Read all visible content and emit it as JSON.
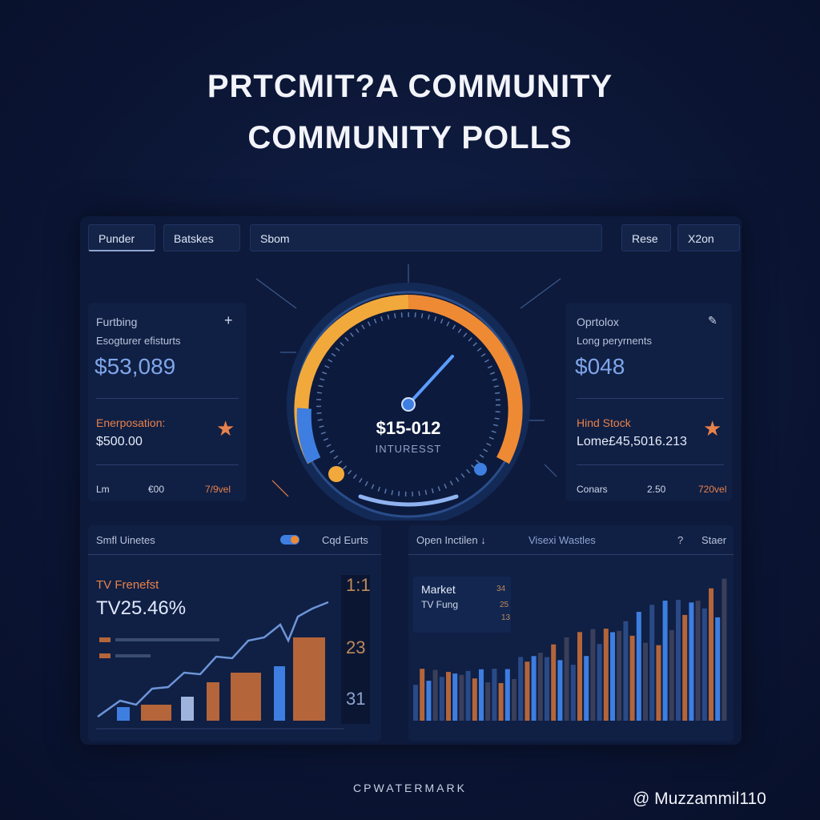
{
  "header": {
    "title_lines": [
      "PRTCMIT?A COMMUNITY",
      "COMMUNITY POLLS"
    ]
  },
  "toolbar": {
    "tabs": [
      "Punder",
      "Batskes",
      "Sbom",
      "Rese",
      "X2on"
    ]
  },
  "left_card": {
    "title": "Furtbing",
    "subtitle": "Esogturer efisturts",
    "amount": "$53,089",
    "section": "Enerposation:",
    "section_value": "$500.00",
    "footer": [
      "Lm",
      "€00",
      "7/9vel"
    ]
  },
  "gauge": {
    "value": "$15-012",
    "label": "INTURESST"
  },
  "right_card": {
    "title": "Oprtolox",
    "subtitle": "Long peryrnents",
    "amount": "$048",
    "section": "Hind Stock",
    "section_value": "Lome£45,5016.213",
    "footer": [
      "Conars",
      "2.50",
      "720vel"
    ]
  },
  "bottom_left": {
    "title": "Smfl Uinetes",
    "toggle_label": "Cqd Eurts",
    "label": "TV Frenefst",
    "value": "TV25.46%",
    "side_numbers": [
      "1:1",
      "23",
      "31"
    ]
  },
  "bottom_right": {
    "title": "Open Inctilen ↓",
    "tab": "Visexi Wastles",
    "help": "?",
    "action": "Staer",
    "legend": {
      "title": "Market",
      "row_label": "TV Fung",
      "numbers": [
        "34",
        "25",
        "13"
      ]
    }
  },
  "footer": {
    "watermark": "CPWATERMARK",
    "handle": "@ Muzzammil110"
  }
}
